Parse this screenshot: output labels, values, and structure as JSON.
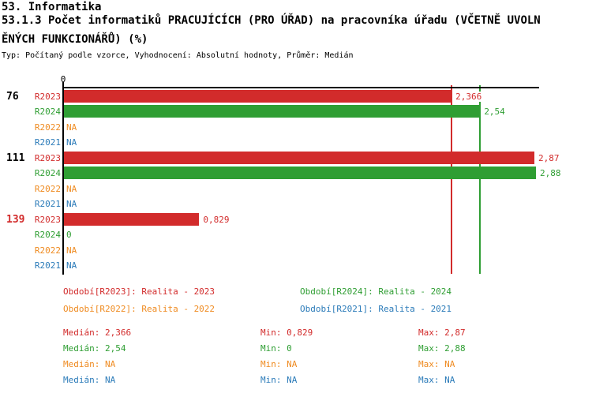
{
  "header": {
    "section_title": "53. Informatika",
    "indicator_title_lines": [
      "53.1.3 Počet informatiků PRACUJÍCÍCH (PRO ÚŘAD) na pracovníka úřadu (VČETNĚ UVOLN",
      "ĚNÝCH FUNKCIONÁŘŮ) (%)"
    ],
    "meta_line": "Typ: Počítaný podle vzorce, Vyhodnocení: Absolutní hodnoty, Průměr: Medián"
  },
  "colors": {
    "r2023": "#d22b2b",
    "r2024": "#2f9e33",
    "r2022": "#ef8b21",
    "r2021": "#2b7bb9",
    "axis": "#000000",
    "flagged_group": "#d22b2b"
  },
  "chart_data": {
    "type": "bar",
    "orientation": "horizontal",
    "title": "53.1.3 Počet informatiků PRACUJÍCÍCH (PRO ÚŘAD) na pracovníka úřadu (VČETNĚ UVOLNĚNÝCH FUNKCIONÁŘŮ) (%)",
    "xlabel": "",
    "ylabel": "",
    "axis": {
      "zero_label": "0",
      "min": 0,
      "max": 2.9,
      "grid": false
    },
    "series_colors": {
      "R2023": "#d22b2b",
      "R2024": "#2f9e33",
      "R2022": "#ef8b21",
      "R2021": "#2b7bb9"
    },
    "median_lines": [
      {
        "series": "R2023",
        "value": 2.366,
        "color": "#d22b2b"
      },
      {
        "series": "R2024",
        "value": 2.54,
        "color": "#2f9e33"
      }
    ],
    "groups": [
      {
        "label": "76",
        "label_color": "#000000",
        "rows": [
          {
            "period": "R2023",
            "value": 2.366,
            "display": "2,366"
          },
          {
            "period": "R2024",
            "value": 2.54,
            "display": "2,54"
          },
          {
            "period": "R2022",
            "value": null,
            "display": "NA"
          },
          {
            "period": "R2021",
            "value": null,
            "display": "NA"
          }
        ]
      },
      {
        "label": "111",
        "label_color": "#000000",
        "rows": [
          {
            "period": "R2023",
            "value": 2.87,
            "display": "2,87"
          },
          {
            "period": "R2024",
            "value": 2.88,
            "display": "2,88"
          },
          {
            "period": "R2022",
            "value": null,
            "display": "NA"
          },
          {
            "period": "R2021",
            "value": null,
            "display": "NA"
          }
        ]
      },
      {
        "label": "139",
        "label_color": "#d22b2b",
        "rows": [
          {
            "period": "R2023",
            "value": 0.829,
            "display": "0,829"
          },
          {
            "period": "R2024",
            "value": 0,
            "display": "0"
          },
          {
            "period": "R2022",
            "value": null,
            "display": "NA"
          },
          {
            "period": "R2021",
            "value": null,
            "display": "NA"
          }
        ]
      }
    ]
  },
  "legend": {
    "items": [
      {
        "id": "R2023",
        "text": "Období[R2023]: Realita - 2023",
        "color": "#d22b2b"
      },
      {
        "id": "R2024",
        "text": "Období[R2024]: Realita - 2024",
        "color": "#2f9e33"
      },
      {
        "id": "R2022",
        "text": "Období[R2022]: Realita - 2022",
        "color": "#ef8b21"
      },
      {
        "id": "R2021",
        "text": "Období[R2021]: Realita - 2021",
        "color": "#2b7bb9"
      }
    ]
  },
  "stats": {
    "median_label": "Medián:",
    "min_label": "Min:",
    "max_label": "Max:",
    "rows": [
      {
        "id": "R2023",
        "color": "#d22b2b",
        "median": "2,366",
        "min": "0,829",
        "max": "2,87"
      },
      {
        "id": "R2024",
        "color": "#2f9e33",
        "median": "2,54",
        "min": "0",
        "max": "2,88"
      },
      {
        "id": "R2022",
        "color": "#ef8b21",
        "median": "NA",
        "min": "NA",
        "max": "NA"
      },
      {
        "id": "R2021",
        "color": "#2b7bb9",
        "median": "NA",
        "min": "NA",
        "max": "NA"
      }
    ]
  }
}
